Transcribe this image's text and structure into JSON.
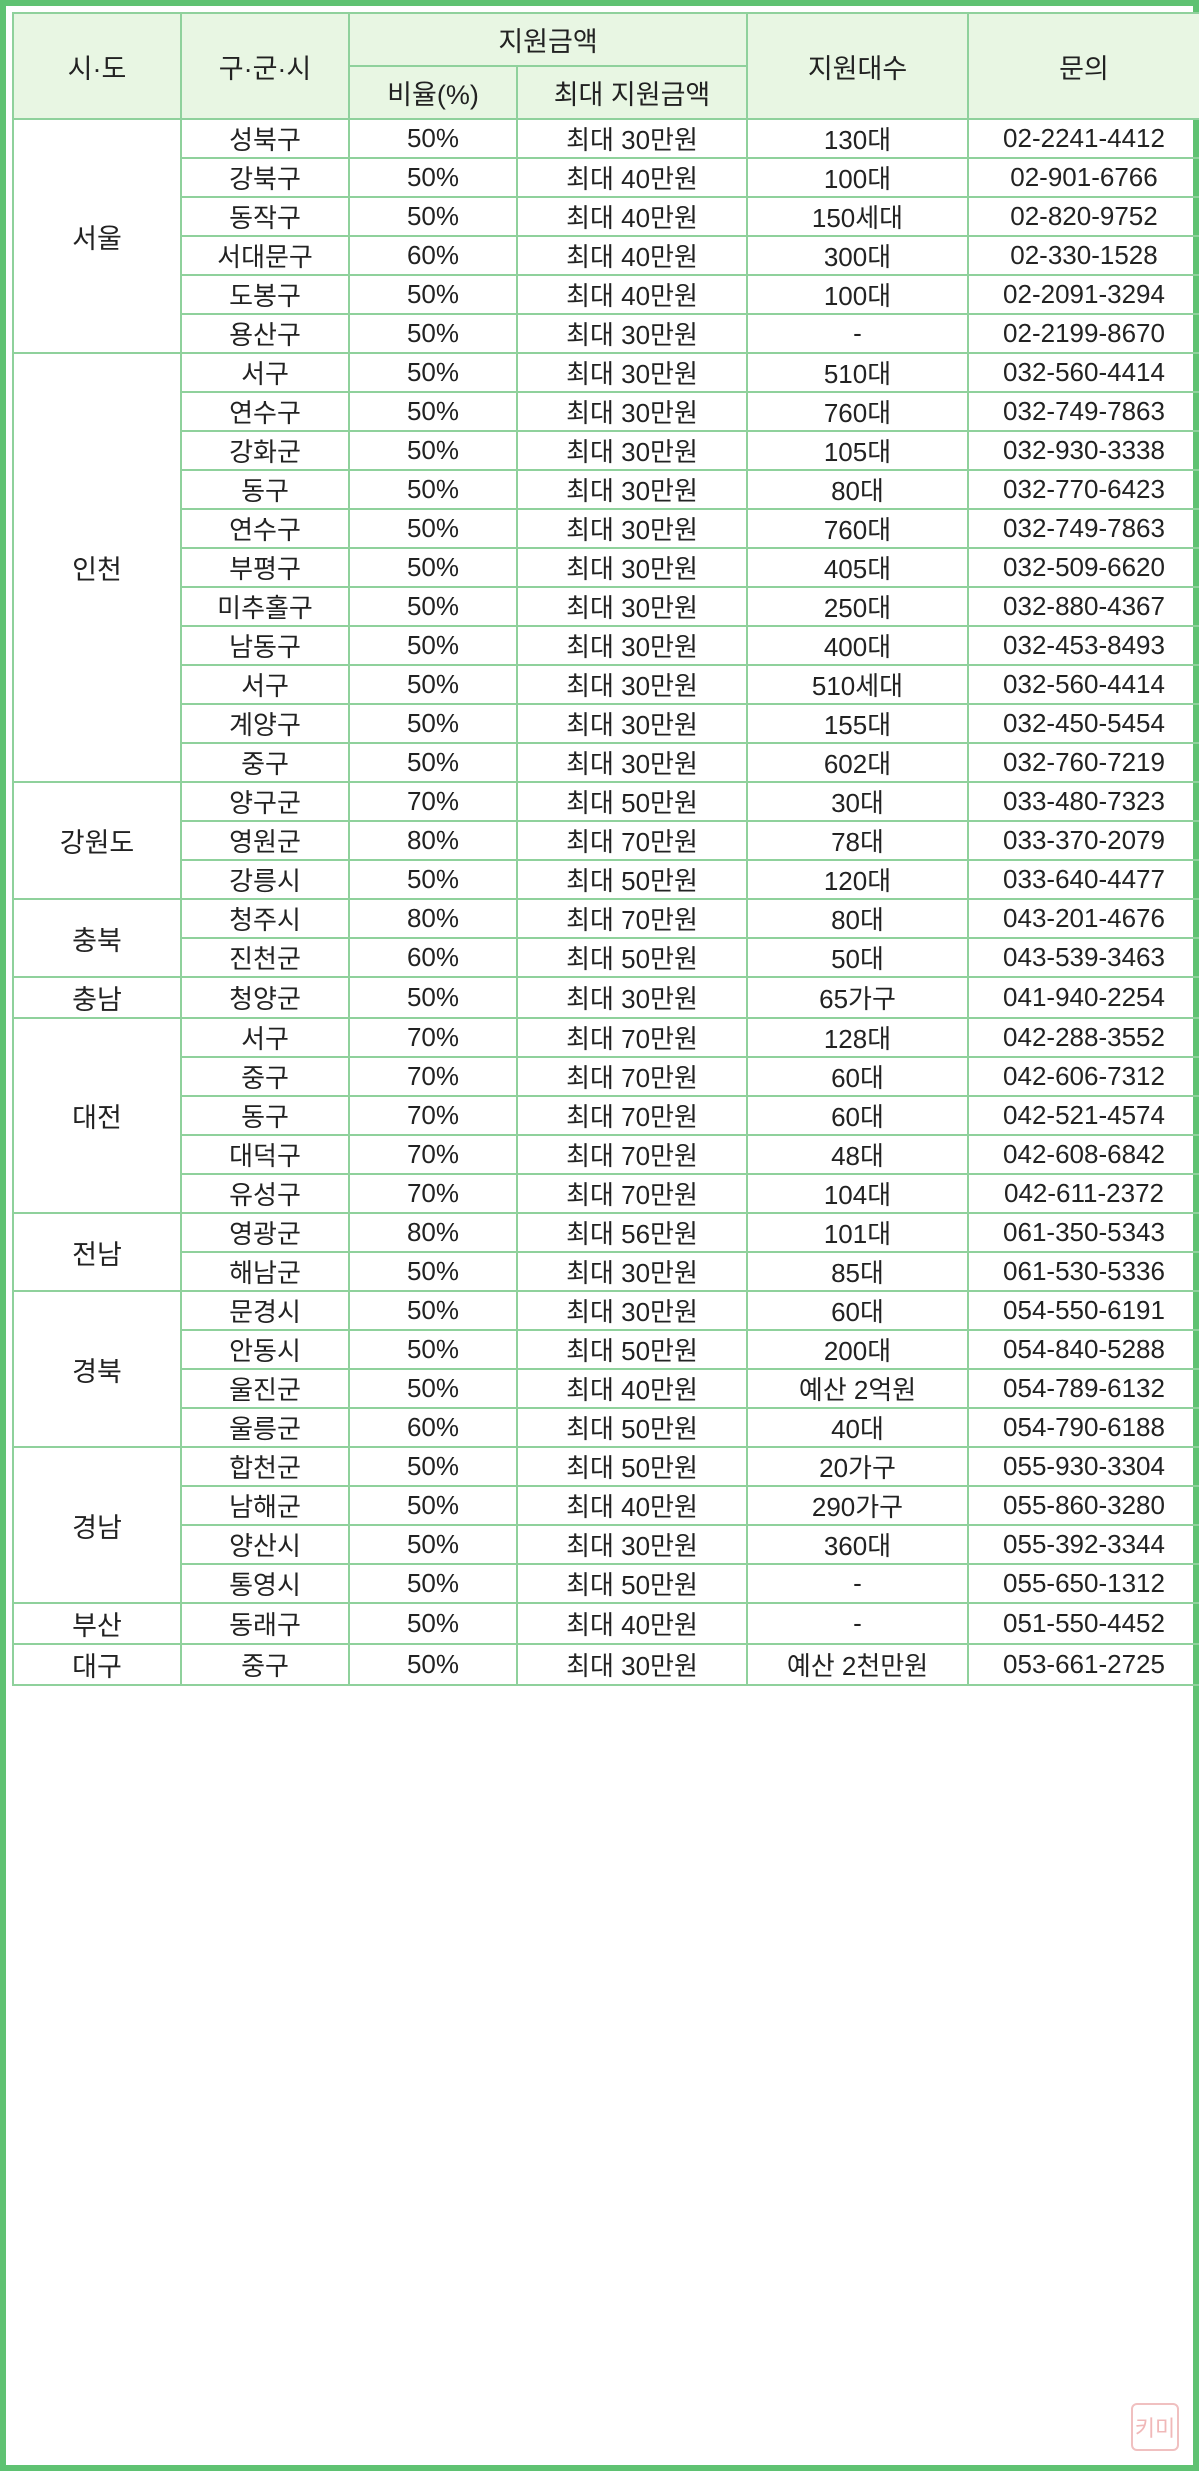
{
  "headers": {
    "sido": "시·도",
    "gugun": "구·군·시",
    "amount_group": "지원금액",
    "ratio": "비율(%)",
    "max_amount": "최대 지원금액",
    "count": "지원대수",
    "contact": "문의"
  },
  "watermark_text": "키미",
  "colors": {
    "border": "#5fc272",
    "grid": "#8fd19c",
    "header_bg": "#e8f6e3"
  },
  "groups": [
    {
      "sido": "서울",
      "rows": [
        [
          "성북구",
          "50%",
          "최대 30만원",
          "130대",
          "02-2241-4412"
        ],
        [
          "강북구",
          "50%",
          "최대 40만원",
          "100대",
          "02-901-6766"
        ],
        [
          "동작구",
          "50%",
          "최대 40만원",
          "150세대",
          "02-820-9752"
        ],
        [
          "서대문구",
          "60%",
          "최대 40만원",
          "300대",
          "02-330-1528"
        ],
        [
          "도봉구",
          "50%",
          "최대 40만원",
          "100대",
          "02-2091-3294"
        ],
        [
          "용산구",
          "50%",
          "최대 30만원",
          "-",
          "02-2199-8670"
        ]
      ]
    },
    {
      "sido": "인천",
      "rows": [
        [
          "서구",
          "50%",
          "최대 30만원",
          "510대",
          "032-560-4414"
        ],
        [
          "연수구",
          "50%",
          "최대 30만원",
          "760대",
          "032-749-7863"
        ],
        [
          "강화군",
          "50%",
          "최대 30만원",
          "105대",
          "032-930-3338"
        ],
        [
          "동구",
          "50%",
          "최대 30만원",
          "80대",
          "032-770-6423"
        ],
        [
          "연수구",
          "50%",
          "최대 30만원",
          "760대",
          "032-749-7863"
        ],
        [
          "부평구",
          "50%",
          "최대 30만원",
          "405대",
          "032-509-6620"
        ],
        [
          "미추홀구",
          "50%",
          "최대 30만원",
          "250대",
          "032-880-4367"
        ],
        [
          "남동구",
          "50%",
          "최대 30만원",
          "400대",
          "032-453-8493"
        ],
        [
          "서구",
          "50%",
          "최대 30만원",
          "510세대",
          "032-560-4414"
        ],
        [
          "계양구",
          "50%",
          "최대 30만원",
          "155대",
          "032-450-5454"
        ],
        [
          "중구",
          "50%",
          "최대 30만원",
          "602대",
          "032-760-7219"
        ]
      ]
    },
    {
      "sido": "강원도",
      "rows": [
        [
          "양구군",
          "70%",
          "최대 50만원",
          "30대",
          "033-480-7323"
        ],
        [
          "영원군",
          "80%",
          "최대 70만원",
          "78대",
          "033-370-2079"
        ],
        [
          "강릉시",
          "50%",
          "최대 50만원",
          "120대",
          "033-640-4477"
        ]
      ]
    },
    {
      "sido": "충북",
      "rows": [
        [
          "청주시",
          "80%",
          "최대 70만원",
          "80대",
          "043-201-4676"
        ],
        [
          "진천군",
          "60%",
          "최대 50만원",
          "50대",
          "043-539-3463"
        ]
      ]
    },
    {
      "sido": "충남",
      "rows": [
        [
          "청양군",
          "50%",
          "최대 30만원",
          "65가구",
          "041-940-2254"
        ]
      ]
    },
    {
      "sido": "대전",
      "rows": [
        [
          "서구",
          "70%",
          "최대 70만원",
          "128대",
          "042-288-3552"
        ],
        [
          "중구",
          "70%",
          "최대 70만원",
          "60대",
          "042-606-7312"
        ],
        [
          "동구",
          "70%",
          "최대 70만원",
          "60대",
          "042-521-4574"
        ],
        [
          "대덕구",
          "70%",
          "최대 70만원",
          "48대",
          "042-608-6842"
        ],
        [
          "유성구",
          "70%",
          "최대 70만원",
          "104대",
          "042-611-2372"
        ]
      ]
    },
    {
      "sido": "전남",
      "rows": [
        [
          "영광군",
          "80%",
          "최대 56만원",
          "101대",
          "061-350-5343"
        ],
        [
          "해남군",
          "50%",
          "최대 30만원",
          "85대",
          "061-530-5336"
        ]
      ]
    },
    {
      "sido": "경북",
      "rows": [
        [
          "문경시",
          "50%",
          "최대 30만원",
          "60대",
          "054-550-6191"
        ],
        [
          "안동시",
          "50%",
          "최대 50만원",
          "200대",
          "054-840-5288"
        ],
        [
          "울진군",
          "50%",
          "최대 40만원",
          "예산 2억원",
          "054-789-6132"
        ],
        [
          "울릉군",
          "60%",
          "최대 50만원",
          "40대",
          "054-790-6188"
        ]
      ]
    },
    {
      "sido": "경남",
      "rows": [
        [
          "합천군",
          "50%",
          "최대 50만원",
          "20가구",
          "055-930-3304"
        ],
        [
          "남해군",
          "50%",
          "최대 40만원",
          "290가구",
          "055-860-3280"
        ],
        [
          "양산시",
          "50%",
          "최대 30만원",
          "360대",
          "055-392-3344"
        ],
        [
          "통영시",
          "50%",
          "최대 50만원",
          "-",
          "055-650-1312"
        ]
      ]
    },
    {
      "sido": "부산",
      "rows": [
        [
          "동래구",
          "50%",
          "최대 40만원",
          "-",
          "051-550-4452"
        ]
      ]
    },
    {
      "sido": "대구",
      "rows": [
        [
          "중구",
          "50%",
          "최대 30만원",
          "예산 2천만원",
          "053-661-2725"
        ]
      ]
    }
  ]
}
